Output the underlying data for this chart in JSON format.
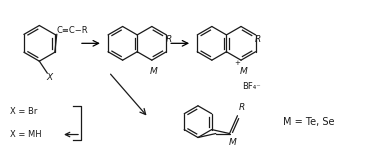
{
  "bg_color": "#ffffff",
  "line_color": "#1a1a1a",
  "figsize": [
    3.87,
    1.61
  ],
  "dpi": 100,
  "label_M_Te_Se": "M = Te, Se",
  "label_BF4": "BF₄⁻",
  "label_plus": "+",
  "label_X": "X",
  "label_R1": "R",
  "label_R2": "R",
  "label_R3": "R",
  "label_R4": "R",
  "label_M1": "M",
  "label_M2": "M",
  "label_M3": "M",
  "label_triple": "C≡C−R",
  "label_XeqBr": "X = Br",
  "label_XeqMH": "X = MH"
}
